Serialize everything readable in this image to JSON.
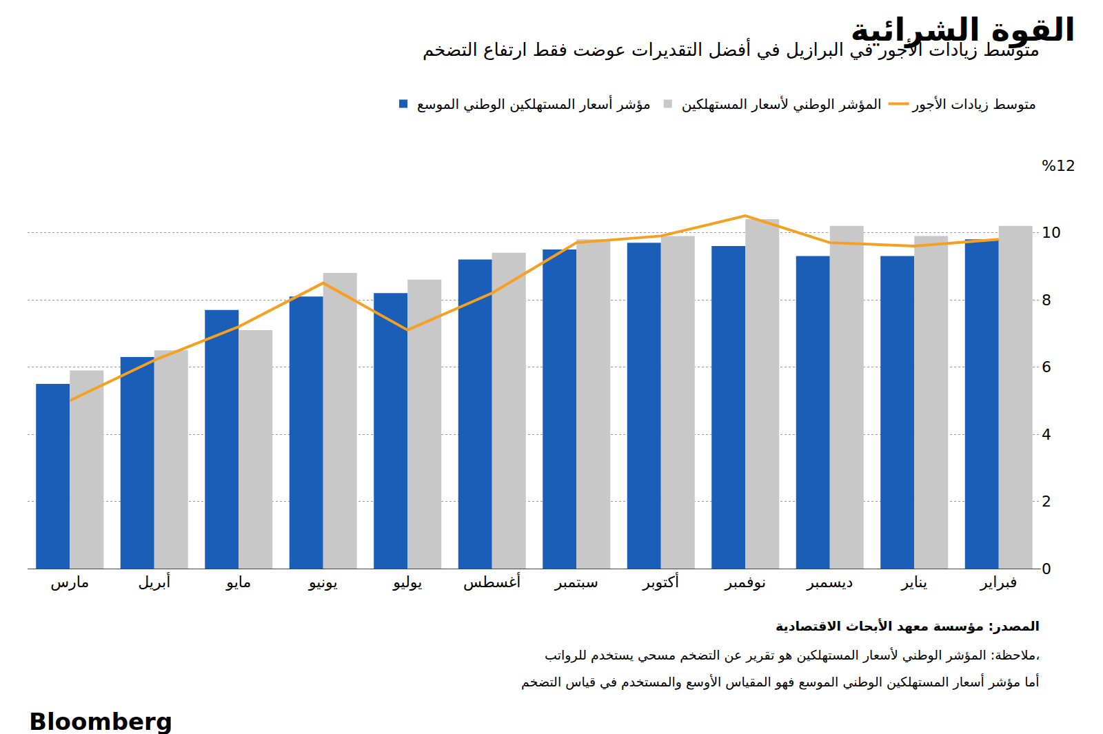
{
  "chart_data": {
    "type": "bar",
    "title": "القوة الشرائية",
    "subtitle": "متوسط زيادات الأجور في البرازيل في أفضل التقديرات عوضت فقط ارتفاع التضخم",
    "categories": [
      "مارس",
      "أبريل",
      "مايو",
      "يونيو",
      "يوليو",
      "أغسطس",
      "سبتمبر",
      "أكتوبر",
      "نوفمبر",
      "ديسمبر",
      "يناير",
      "فبراير"
    ],
    "series": [
      {
        "name": "مؤشر أسعار المستهلكين الوطني الموسع",
        "type": "bar",
        "color": "#1a5eb8",
        "values": [
          5.5,
          6.3,
          7.7,
          8.1,
          8.2,
          9.2,
          9.5,
          9.7,
          9.6,
          9.3,
          9.3,
          9.8
        ]
      },
      {
        "name": "المؤشر الوطني لأسعار المستهلكين",
        "type": "bar",
        "color": "#c8c8c8",
        "values": [
          5.9,
          6.5,
          7.1,
          8.8,
          8.6,
          9.4,
          9.8,
          9.9,
          10.4,
          10.2,
          9.9,
          10.2
        ]
      },
      {
        "name": "متوسط زيادات الأجور",
        "type": "line",
        "color": "#f5a020",
        "values": [
          5.0,
          6.2,
          7.2,
          8.5,
          7.1,
          8.2,
          9.7,
          9.9,
          10.5,
          9.7,
          9.6,
          9.8
        ]
      }
    ],
    "ylim": [
      0,
      12
    ],
    "yticks": [
      0,
      2,
      4,
      6,
      8,
      10,
      {
        "value": 12,
        "label": "%12"
      }
    ],
    "grid": true,
    "legend": "top",
    "annotations": [
      "المصدر: مؤسسة معهد الأبحاث الاقتصادية",
      "ملاحظة: المؤشر الوطني لأسعار المستهلكين هو تقرير عن التضخم مسحي يستخدم للرواتب،",
      "أما مؤشر أسعار المستهلكين الوطني الموسع فهو المقياس الأوسع والمستخدم في قياس التضخم",
      "Bloomberg"
    ]
  }
}
